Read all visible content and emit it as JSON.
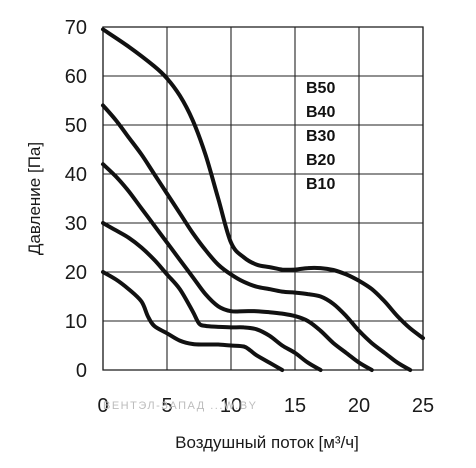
{
  "chart_data": {
    "type": "line",
    "xlabel": "Воздушный поток [м³/ч]",
    "ylabel": "Давление [Па]",
    "xlim": [
      0,
      25
    ],
    "ylim": [
      0,
      70
    ],
    "x_ticks": [
      "0",
      "5",
      "10",
      "15",
      "20",
      "25"
    ],
    "y_ticks": [
      "0",
      "10",
      "20",
      "30",
      "40",
      "50",
      "60",
      "70"
    ],
    "grid": true,
    "legend_position": "top-right",
    "watermark": "ВЕНТЭЛ-ЗАПАД ...W.BY",
    "series": [
      {
        "name": "B50",
        "x": [
          0,
          2,
          4,
          5,
          6,
          7,
          8,
          9,
          10,
          11,
          12,
          13,
          14,
          15,
          16,
          17,
          18,
          19,
          20,
          21,
          22,
          23,
          24,
          25
        ],
        "y": [
          69.5,
          66,
          62,
          59.5,
          56,
          51,
          44,
          35,
          26,
          23,
          21.5,
          21,
          20.5,
          20.5,
          20.8,
          20.8,
          20.4,
          19.5,
          18.2,
          16.5,
          14,
          11,
          8.5,
          6.5
        ]
      },
      {
        "name": "B40",
        "x": [
          0,
          1,
          2,
          3,
          4,
          5,
          6,
          7,
          8,
          9,
          10,
          11,
          12,
          13,
          14,
          15,
          16,
          17,
          18,
          19,
          20,
          21,
          22,
          23,
          24
        ],
        "y": [
          54,
          51,
          47.5,
          44,
          40,
          36,
          32,
          28,
          24.5,
          21.5,
          19.5,
          18,
          17,
          16.5,
          16,
          15.8,
          15.5,
          15,
          13.5,
          11,
          8,
          5.5,
          3.5,
          1.5,
          0
        ]
      },
      {
        "name": "B30",
        "x": [
          0,
          1,
          2,
          3,
          4,
          5,
          6,
          7,
          8,
          9,
          10,
          11,
          12,
          13,
          14,
          15,
          16,
          17,
          18,
          19,
          20,
          21
        ],
        "y": [
          42,
          39.5,
          36.5,
          33,
          29.5,
          26,
          22.5,
          19,
          15.5,
          13,
          12,
          12,
          12,
          11.8,
          11.5,
          11,
          10,
          8,
          5.5,
          3.5,
          1.5,
          0
        ]
      },
      {
        "name": "B20",
        "x": [
          0,
          1,
          2,
          3,
          4,
          5,
          6,
          7,
          7.5,
          8,
          9,
          10,
          11,
          12,
          13,
          14,
          15,
          16,
          17
        ],
        "y": [
          30,
          28.5,
          27,
          25,
          22.5,
          19.5,
          16.5,
          12,
          9.5,
          9,
          8.8,
          8.7,
          8.7,
          8.3,
          7,
          5,
          3.5,
          1.5,
          0
        ]
      },
      {
        "name": "B10",
        "x": [
          0,
          1,
          2,
          3,
          3.5,
          4,
          5,
          6,
          7,
          8,
          9,
          10,
          11,
          11.5,
          12,
          13,
          14
        ],
        "y": [
          20,
          18.5,
          16.5,
          14,
          11,
          9,
          7.5,
          6,
          5.3,
          5.2,
          5.2,
          5,
          4.8,
          4,
          3,
          1.5,
          0
        ]
      }
    ]
  }
}
